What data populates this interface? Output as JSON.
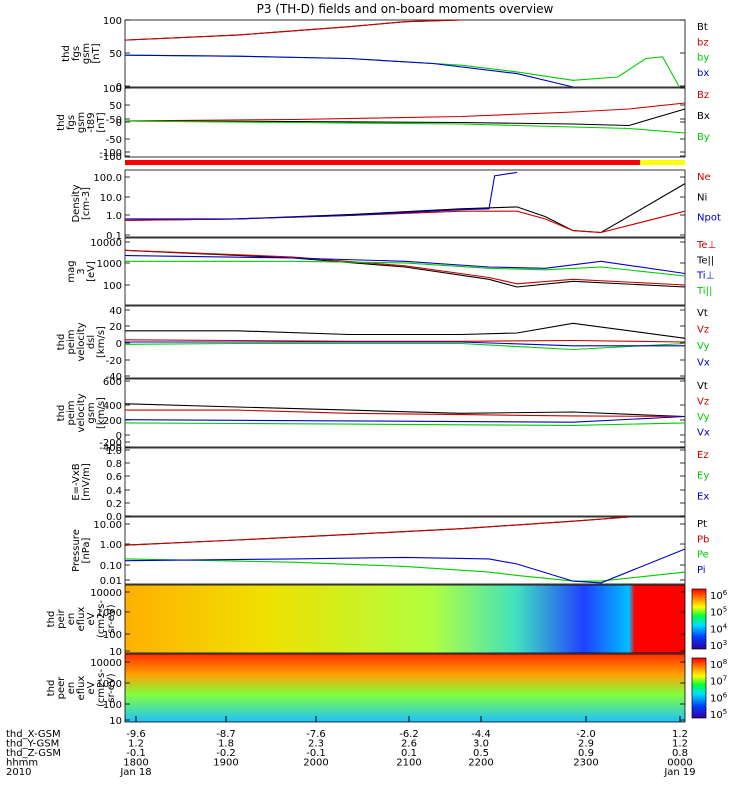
{
  "title": "P3 (TH-D) fields and on-board moments overview",
  "chart_data": [
    {
      "type": "line",
      "ylabel": [
        "thd",
        "fgs",
        "gsm",
        "[nT]"
      ],
      "yticks": [
        "100",
        "50",
        "0",
        "-50",
        "-100"
      ],
      "ylim": [
        -100,
        100
      ],
      "legend": [
        {
          "name": "Bt",
          "color": "#000000"
        },
        {
          "name": "bz",
          "color": "#cc0000"
        },
        {
          "name": "by",
          "color": "#00cc00"
        },
        {
          "name": "bx",
          "color": "#0000cc"
        }
      ],
      "series": [
        {
          "name": "Bt",
          "color": "#000000",
          "x": [
            0,
            0.2,
            0.4,
            0.5,
            0.6
          ],
          "y": [
            40,
            55,
            80,
            95,
            100
          ]
        },
        {
          "name": "bz",
          "color": "#cc0000",
          "x": [
            0,
            0.2,
            0.4,
            0.5,
            0.6
          ],
          "y": [
            40,
            55,
            80,
            95,
            100
          ]
        },
        {
          "name": "by",
          "color": "#00cc00",
          "x": [
            0,
            0.2,
            0.4,
            0.6,
            0.7,
            0.8,
            0.88,
            0.93,
            0.96,
            0.99
          ],
          "y": [
            -5,
            -8,
            -15,
            -35,
            -55,
            -80,
            -70,
            -15,
            -10,
            -100
          ]
        },
        {
          "name": "bx",
          "color": "#0000cc",
          "x": [
            0,
            0.2,
            0.4,
            0.55,
            0.7,
            0.8
          ],
          "y": [
            -5,
            -8,
            -15,
            -30,
            -60,
            -100
          ]
        }
      ]
    },
    {
      "type": "line",
      "ylabel": [
        "thd",
        "fgs",
        "gsm",
        "-t89",
        "[nT]"
      ],
      "yticks": [
        "100",
        "50",
        "0",
        "-50",
        "-100"
      ],
      "ylim": [
        -120,
        110
      ],
      "legend": [
        {
          "name": "Bz",
          "color": "#cc0000"
        },
        {
          "name": "Bx",
          "color": "#000000"
        },
        {
          "name": "By",
          "color": "#00cc00"
        }
      ],
      "series": [
        {
          "name": "Bz",
          "color": "#cc0000",
          "x": [
            0,
            0.3,
            0.6,
            0.8,
            0.9,
            1.0
          ],
          "y": [
            0,
            5,
            15,
            30,
            40,
            60
          ]
        },
        {
          "name": "Bx",
          "color": "#000000",
          "x": [
            0,
            0.3,
            0.6,
            0.8,
            0.9,
            1.0
          ],
          "y": [
            0,
            -2,
            -5,
            -10,
            -15,
            40
          ]
        },
        {
          "name": "By",
          "color": "#00cc00",
          "x": [
            0,
            0.3,
            0.6,
            0.8,
            0.9,
            1.0
          ],
          "y": [
            0,
            -5,
            -10,
            -20,
            -25,
            -40
          ]
        }
      ]
    },
    {
      "type": "line",
      "ylabel": [
        "Density",
        "[cm-3]"
      ],
      "yticks": [
        "100.0",
        "10.0",
        "1.0",
        "0.1"
      ],
      "scale": "log",
      "ylim": [
        0.07,
        200
      ],
      "legend": [
        {
          "name": "Ne",
          "color": "#cc0000"
        },
        {
          "name": "Ni",
          "color": "#000000"
        },
        {
          "name": "Npot",
          "color": "#0000cc"
        }
      ],
      "series": [
        {
          "name": "Ni",
          "color": "#000000",
          "x": [
            0,
            0.2,
            0.4,
            0.6,
            0.7,
            0.75,
            0.8,
            0.85,
            1.0
          ],
          "y": [
            0.5,
            0.6,
            1.0,
            2.0,
            2.5,
            0.8,
            0.15,
            0.12,
            40
          ]
        },
        {
          "name": "Ne",
          "color": "#cc0000",
          "x": [
            0,
            0.2,
            0.4,
            0.6,
            0.7,
            0.75,
            0.8,
            0.85,
            1.0
          ],
          "y": [
            0.5,
            0.6,
            0.9,
            1.5,
            1.5,
            0.6,
            0.15,
            0.12,
            1.5
          ]
        },
        {
          "name": "Npot",
          "color": "#0000cc",
          "x": [
            0,
            0.2,
            0.4,
            0.6,
            0.65,
            0.66,
            0.7
          ],
          "y": [
            0.6,
            0.6,
            0.9,
            1.8,
            2.0,
            100,
            150
          ]
        }
      ]
    },
    {
      "type": "line",
      "ylabel": [
        "mag",
        "3",
        "[eV]"
      ],
      "yticks": [
        "10000",
        "1000",
        "100"
      ],
      "scale": "log",
      "ylim": [
        30,
        12000
      ],
      "legend": [
        {
          "name": "Te⊥",
          "color": "#cc0000"
        },
        {
          "name": "Te||",
          "color": "#000000"
        },
        {
          "name": "Ti⊥",
          "color": "#0000cc"
        },
        {
          "name": "Ti||",
          "color": "#00cc00"
        }
      ],
      "series": [
        {
          "name": "Te||",
          "color": "#000000",
          "x": [
            0,
            0.3,
            0.5,
            0.65,
            0.7,
            0.8,
            1.0
          ],
          "y": [
            4000,
            2000,
            900,
            300,
            150,
            250,
            150
          ]
        },
        {
          "name": "Te⊥",
          "color": "#cc0000",
          "x": [
            0,
            0.3,
            0.5,
            0.65,
            0.7,
            0.8,
            1.0
          ],
          "y": [
            4000,
            2200,
            1000,
            350,
            200,
            300,
            180
          ]
        },
        {
          "name": "Ti⊥",
          "color": "#0000cc",
          "x": [
            0,
            0.3,
            0.5,
            0.65,
            0.75,
            0.85,
            1.0
          ],
          "y": [
            2500,
            2000,
            1500,
            900,
            800,
            1500,
            500
          ]
        },
        {
          "name": "Ti||",
          "color": "#00cc00",
          "x": [
            0,
            0.3,
            0.5,
            0.65,
            0.75,
            0.85,
            1.0
          ],
          "y": [
            1500,
            1500,
            1300,
            800,
            700,
            900,
            400
          ]
        }
      ]
    },
    {
      "type": "line",
      "ylabel": [
        "thd",
        "peim",
        "velocity",
        "dsl",
        "[km/s]"
      ],
      "yticks": [
        "40",
        "20",
        "0",
        "-20",
        "-40"
      ],
      "ylim": [
        -48,
        48
      ],
      "legend": [
        {
          "name": "Vt",
          "color": "#000000"
        },
        {
          "name": "Vz",
          "color": "#cc0000"
        },
        {
          "name": "Vy",
          "color": "#00cc00"
        },
        {
          "name": "Vx",
          "color": "#0000cc"
        }
      ],
      "series": [
        {
          "name": "Vt",
          "color": "#000000",
          "x": [
            0,
            0.2,
            0.4,
            0.6,
            0.7,
            0.8,
            1.0
          ],
          "y": [
            15,
            15,
            10,
            10,
            12,
            25,
            5
          ]
        },
        {
          "name": "Vz",
          "color": "#cc0000",
          "x": [
            0,
            0.2,
            0.4,
            0.6,
            0.8,
            1.0
          ],
          "y": [
            3,
            2,
            1,
            1,
            2,
            0
          ]
        },
        {
          "name": "Vy",
          "color": "#00cc00",
          "x": [
            0,
            0.2,
            0.4,
            0.6,
            0.8,
            1.0
          ],
          "y": [
            -3,
            -2,
            -2,
            -2,
            -10,
            -2
          ]
        },
        {
          "name": "Vx",
          "color": "#0000cc",
          "x": [
            0,
            0.2,
            0.4,
            0.6,
            0.8,
            1.0
          ],
          "y": [
            0,
            0,
            0,
            0,
            -5,
            -5
          ]
        }
      ]
    },
    {
      "type": "line",
      "ylabel": [
        "thd",
        "peim",
        "velocity",
        "gsm",
        "[km/s]"
      ],
      "yticks": [
        "600",
        "400",
        "200",
        "0",
        "-200",
        "-400"
      ],
      "ylim": [
        -430,
        640
      ],
      "legend": [
        {
          "name": "Vt",
          "color": "#000000"
        },
        {
          "name": "Vz",
          "color": "#cc0000"
        },
        {
          "name": "Vy",
          "color": "#00cc00"
        },
        {
          "name": "Vx",
          "color": "#0000cc"
        }
      ],
      "series": [
        {
          "name": "Vt",
          "color": "#000000",
          "x": [
            0,
            0.2,
            0.4,
            0.6,
            0.8,
            1.0
          ],
          "y": [
            250,
            200,
            150,
            100,
            120,
            50
          ]
        },
        {
          "name": "Vz",
          "color": "#cc0000",
          "x": [
            0,
            0.2,
            0.4,
            0.6,
            0.8,
            1.0
          ],
          "y": [
            150,
            150,
            100,
            80,
            60,
            50
          ]
        },
        {
          "name": "Vy",
          "color": "#00cc00",
          "x": [
            0,
            0.2,
            0.4,
            0.6,
            0.8,
            1.0
          ],
          "y": [
            -50,
            -60,
            -70,
            -80,
            -90,
            -50
          ]
        },
        {
          "name": "Vx",
          "color": "#0000cc",
          "x": [
            0,
            0.2,
            0.4,
            0.6,
            0.8,
            1.0
          ],
          "y": [
            0,
            -10,
            -20,
            -30,
            -40,
            50
          ]
        }
      ]
    },
    {
      "type": "line",
      "ylabel": [
        "E=-VxB",
        "[mV/m]"
      ],
      "yticks": [
        "1.0",
        "0.8",
        "0.6",
        "0.4",
        "0.2",
        "0.0"
      ],
      "ylim": [
        0,
        1
      ],
      "legend": [
        {
          "name": "Ez",
          "color": "#cc0000"
        },
        {
          "name": "Ey",
          "color": "#00cc00"
        },
        {
          "name": "Ex",
          "color": "#0000cc"
        }
      ],
      "series": []
    },
    {
      "type": "line",
      "ylabel": [
        "Pressure",
        "[nPa]"
      ],
      "yticks": [
        "10.00",
        "1.00",
        "0.10",
        "0.01"
      ],
      "scale": "log",
      "ylim": [
        0.007,
        25
      ],
      "legend": [
        {
          "name": "Pt",
          "color": "#000000"
        },
        {
          "name": "Pb",
          "color": "#cc0000"
        },
        {
          "name": "Pe",
          "color": "#00cc00"
        },
        {
          "name": "Pi",
          "color": "#0000cc"
        }
      ],
      "series": [
        {
          "name": "Pt",
          "color": "#000000",
          "x": [
            0,
            0.2,
            0.4,
            0.6,
            0.8,
            0.9
          ],
          "y": [
            0.8,
            1.5,
            3,
            6,
            15,
            25
          ]
        },
        {
          "name": "Pb",
          "color": "#cc0000",
          "x": [
            0,
            0.2,
            0.4,
            0.6,
            0.8,
            0.9
          ],
          "y": [
            0.8,
            1.5,
            3,
            6,
            15,
            25
          ]
        },
        {
          "name": "Pe",
          "color": "#00cc00",
          "x": [
            0,
            0.3,
            0.5,
            0.65,
            0.7,
            0.8,
            0.85,
            1.0
          ],
          "y": [
            0.15,
            0.1,
            0.06,
            0.03,
            0.02,
            0.01,
            0.01,
            0.03
          ]
        },
        {
          "name": "Pi",
          "color": "#0000cc",
          "x": [
            0,
            0.3,
            0.5,
            0.65,
            0.7,
            0.8,
            0.85,
            1.0
          ],
          "y": [
            0.12,
            0.15,
            0.18,
            0.15,
            0.08,
            0.01,
            0.008,
            0.5
          ]
        }
      ]
    },
    {
      "type": "heatmap",
      "ylabel": [
        "thd",
        "peir",
        "en",
        "eflux",
        "eV",
        "(cm2-s-",
        "sr-eV)"
      ],
      "yticks": [
        "10000",
        "1000",
        "100",
        "10"
      ],
      "colorbar": [
        "10^6",
        "10^5",
        "10^4",
        "10^3"
      ]
    },
    {
      "type": "heatmap",
      "ylabel": [
        "thd",
        "peer",
        "en",
        "eflux",
        "eV",
        "(cm2-s-",
        "sr-eV)"
      ],
      "yticks": [
        "10000",
        "1000",
        "100",
        "10"
      ],
      "colorbar": [
        "10^8",
        "10^7",
        "10^6",
        "10^5"
      ]
    }
  ],
  "xaxis": {
    "rows": [
      {
        "label": "thd_X-GSM",
        "values": [
          "-9.6",
          "-8.7",
          "-7.6",
          "-6.2",
          "-4.4",
          "-2.0",
          "1.2"
        ]
      },
      {
        "label": "thd_Y-GSM",
        "values": [
          "1.2",
          "1.8",
          "2.3",
          "2.6",
          "3.0",
          "2.9",
          "1.2"
        ]
      },
      {
        "label": "thd_Z-GSM",
        "values": [
          "-0.1",
          "-0.2",
          "-0.1",
          "0.1",
          "0.5",
          "0.9",
          "0.8"
        ]
      },
      {
        "label": "hhmm",
        "values": [
          "1800",
          "1900",
          "2000",
          "2100",
          "2200",
          "2300",
          "0000"
        ]
      },
      {
        "label": "2010",
        "values": [
          "Jan 18",
          "",
          "",
          "",
          "",
          "",
          "Jan 19"
        ]
      }
    ]
  }
}
